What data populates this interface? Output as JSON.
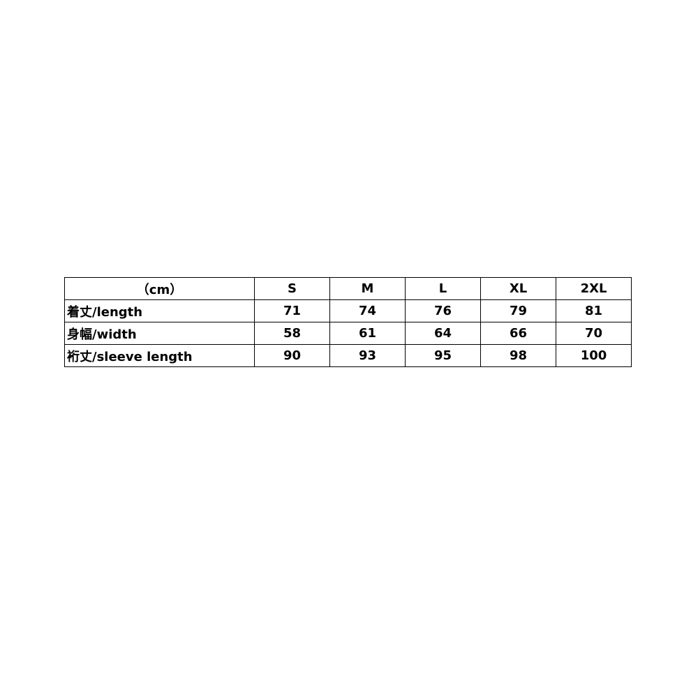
{
  "table": {
    "corner": "（cm）",
    "sizes": [
      "S",
      "M",
      "L",
      "XL",
      "2XL"
    ],
    "rows": [
      {
        "label": "着丈/length",
        "values": [
          "71",
          "74",
          "76",
          "79",
          "81"
        ]
      },
      {
        "label": "身幅/width",
        "values": [
          "58",
          "61",
          "64",
          "66",
          "70"
        ]
      },
      {
        "label": "裄丈/sleeve length",
        "values": [
          "90",
          "93",
          "95",
          "98",
          "100"
        ]
      }
    ]
  }
}
